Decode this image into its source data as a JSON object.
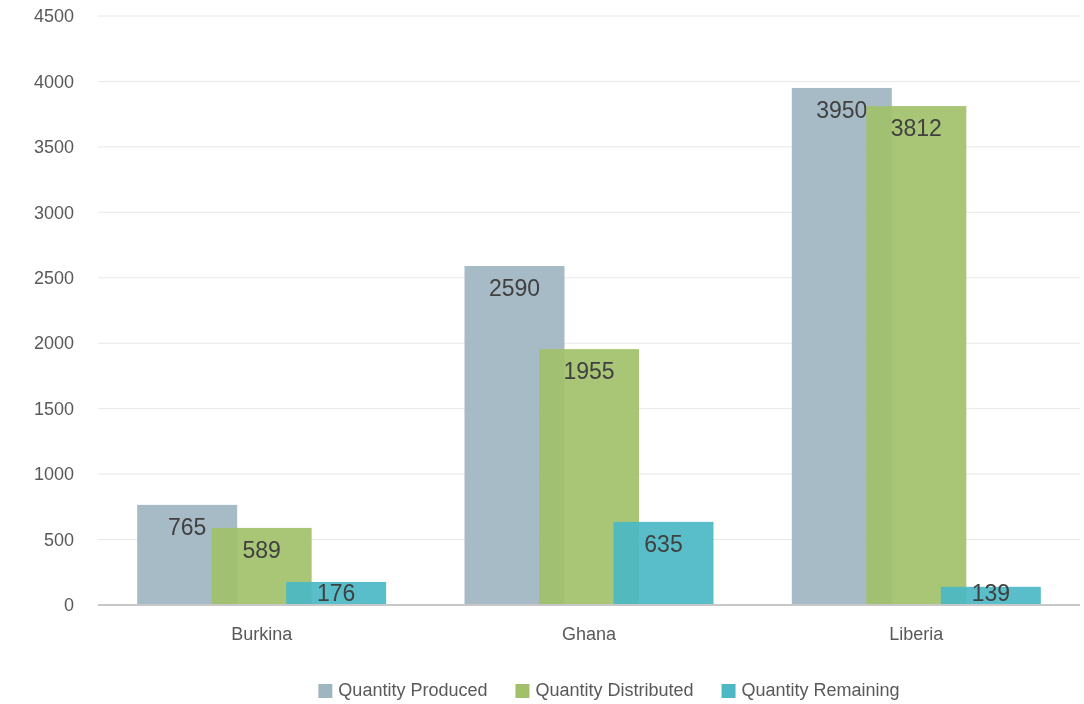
{
  "chart_data": {
    "type": "bar",
    "categories": [
      "Burkina",
      "Ghana",
      "Liberia"
    ],
    "series": [
      {
        "name": "Quantity Produced",
        "color": "#a0b5c2",
        "values": [
          765,
          2590,
          3950
        ]
      },
      {
        "name": "Quantity Distributed",
        "color": "#a2c06a",
        "values": [
          589,
          1955,
          3812
        ]
      },
      {
        "name": "Quantity Remaining",
        "color": "#4bb8c4",
        "values": [
          176,
          635,
          139
        ]
      }
    ],
    "ylim": [
      0,
      4500
    ],
    "yticks": [
      0,
      500,
      1000,
      1500,
      2000,
      2500,
      3000,
      3500,
      4000,
      4500
    ],
    "grid": "y",
    "legend": "bottom",
    "data_labels": true
  }
}
